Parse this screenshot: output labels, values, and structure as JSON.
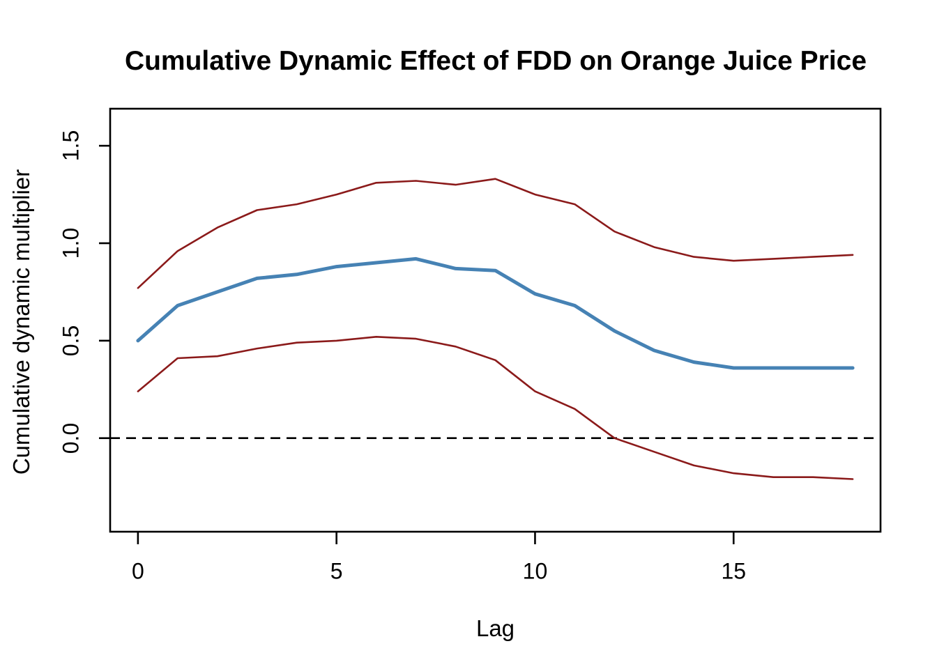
{
  "chart_data": {
    "type": "line",
    "title": "Cumulative Dynamic Effect of FDD on Orange Juice Price",
    "xlabel": "Lag",
    "ylabel": "Cumulative dynamic multiplier",
    "x": [
      0,
      1,
      2,
      3,
      4,
      5,
      6,
      7,
      8,
      9,
      10,
      11,
      12,
      13,
      14,
      15,
      16,
      17,
      18
    ],
    "series": [
      {
        "name": "cumulative-dynamic-multiplier",
        "color": "#4682B4",
        "stroke_width": 5,
        "values": [
          0.5,
          0.68,
          0.75,
          0.82,
          0.84,
          0.88,
          0.9,
          0.92,
          0.87,
          0.86,
          0.74,
          0.68,
          0.55,
          0.45,
          0.39,
          0.36,
          0.36,
          0.36,
          0.36
        ]
      },
      {
        "name": "upper-confidence-band",
        "color": "#8B1A1A",
        "stroke_width": 2.6,
        "values": [
          0.77,
          0.96,
          1.08,
          1.17,
          1.2,
          1.25,
          1.31,
          1.32,
          1.3,
          1.33,
          1.25,
          1.2,
          1.06,
          0.98,
          0.93,
          0.91,
          0.92,
          0.93,
          0.94
        ]
      },
      {
        "name": "lower-confidence-band",
        "color": "#8B1A1A",
        "stroke_width": 2.6,
        "values": [
          0.24,
          0.41,
          0.42,
          0.46,
          0.49,
          0.5,
          0.52,
          0.51,
          0.47,
          0.4,
          0.24,
          0.15,
          0.0,
          -0.07,
          -0.14,
          -0.18,
          -0.2,
          -0.2,
          -0.21
        ]
      }
    ],
    "zero_line": {
      "y": 0,
      "style": "dashed",
      "color": "#000000",
      "dash": "14 9",
      "stroke_width": 2.6
    },
    "x_ticks": [
      {
        "value": 0,
        "label": "0"
      },
      {
        "value": 5,
        "label": "5"
      },
      {
        "value": 10,
        "label": "10"
      },
      {
        "value": 15,
        "label": "15"
      }
    ],
    "y_ticks": [
      {
        "value": 0.0,
        "label": "0.0"
      },
      {
        "value": 0.5,
        "label": "0.5"
      },
      {
        "value": 1.0,
        "label": "1.0"
      },
      {
        "value": 1.5,
        "label": "1.5"
      }
    ],
    "xlim": [
      -0.7,
      18.7
    ],
    "ylim": [
      -0.48,
      1.69
    ],
    "grid": false,
    "legend": "none",
    "frame_color": "#000000",
    "background": "#ffffff"
  }
}
